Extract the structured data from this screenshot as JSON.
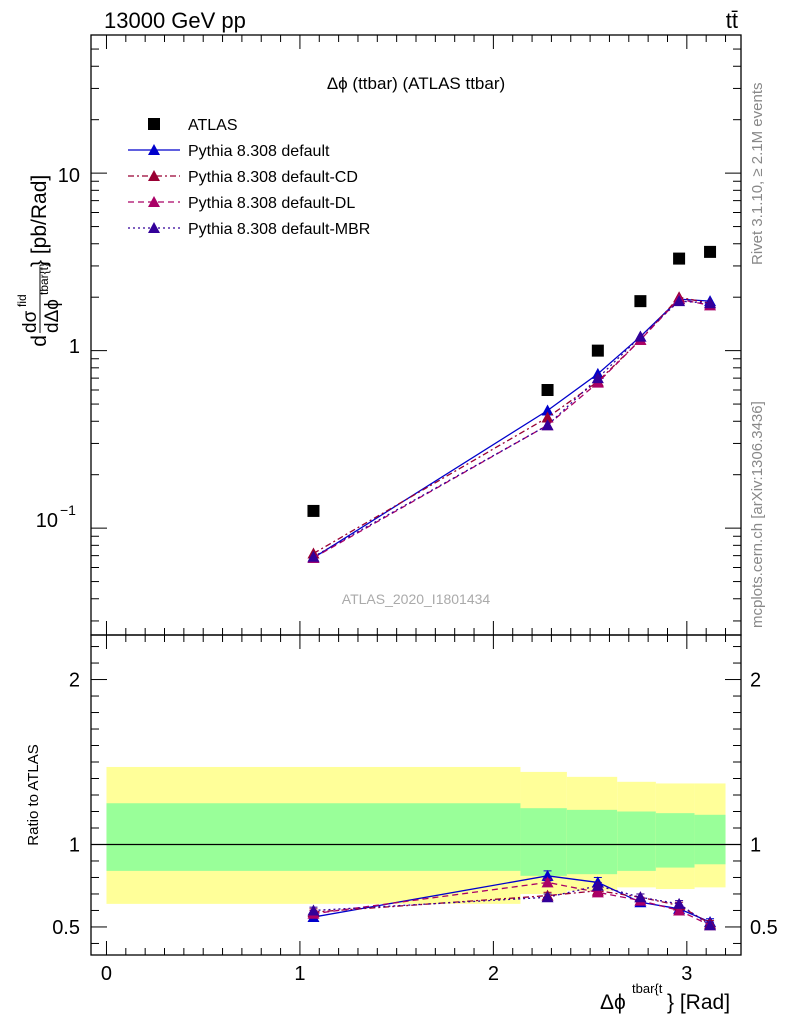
{
  "header": {
    "left": "13000 GeV pp",
    "right": "tt̄"
  },
  "side_labels": {
    "rivet": "Rivet 3.1.10, ≥ 2.1M events",
    "mcplots": "mcplots.cern.ch [arXiv:1306.3436]"
  },
  "watermark": "ATLAS_2020_I1801434",
  "chart_data": [
    {
      "type": "scatter",
      "title": "Δϕ (ttbar) (ATLAS ttbar)",
      "ylabel": "dσ^{fid}/dΔϕ^{tbar{t}} [pb/Rad]",
      "ylabel_parts": {
        "d1": "d",
        "sigma": "dσ",
        "sup": "fid",
        "d2": "dΔϕ",
        "sub": "tbar{t}",
        "unit": "} [pb/Rad]"
      },
      "yscale": "log",
      "ylim": [
        0.025,
        60
      ],
      "xlim": [
        -0.08,
        3.28
      ],
      "y_tick_labels": {
        "ten": "10",
        "one": "1",
        "tenth_base": "10",
        "tenth_exp": "−1"
      },
      "legend_position": "top-left",
      "series": [
        {
          "name": "ATLAS",
          "style": "marker",
          "color": "#000000",
          "x": [
            1.07,
            2.28,
            2.54,
            2.76,
            2.96,
            3.12
          ],
          "y": [
            0.125,
            0.6,
            1.0,
            1.9,
            3.3,
            3.6
          ]
        },
        {
          "name": "Pythia 8.308 default",
          "style": "solid",
          "color": "#0000cc",
          "x": [
            1.07,
            2.28,
            2.54,
            2.76,
            2.96,
            3.12
          ],
          "y": [
            0.068,
            0.46,
            0.74,
            1.2,
            1.95,
            1.9
          ]
        },
        {
          "name": "Pythia 8.308 default-CD",
          "style": "dashdot",
          "color": "#990033",
          "x": [
            1.07,
            2.28,
            2.54,
            2.76,
            2.96,
            3.12
          ],
          "y": [
            0.072,
            0.42,
            0.67,
            1.15,
            2.0,
            1.85
          ]
        },
        {
          "name": "Pythia 8.308 default-DL",
          "style": "dashed",
          "color": "#aa0066",
          "x": [
            1.07,
            2.28,
            2.54,
            2.76,
            2.96,
            3.12
          ],
          "y": [
            0.068,
            0.38,
            0.66,
            1.15,
            1.95,
            1.8
          ]
        },
        {
          "name": "Pythia 8.308 default-MBR",
          "style": "dotted",
          "color": "#330099",
          "x": [
            1.07,
            2.28,
            2.54,
            2.76,
            2.96,
            3.12
          ],
          "y": [
            0.069,
            0.38,
            0.7,
            1.2,
            1.9,
            1.85
          ]
        }
      ]
    },
    {
      "type": "line",
      "ylabel": "Ratio to ATLAS",
      "xlabel": "Δϕ^{tbar{t}} [Rad]",
      "xlabel_parts": {
        "base": "Δϕ",
        "sup": "tbar{t",
        "rest": "} [Rad]"
      },
      "xlim": [
        -0.08,
        3.28
      ],
      "ylim": [
        0.33,
        2.27
      ],
      "x_ticks": [
        0,
        1,
        2,
        3
      ],
      "y_ticks": [
        0.5,
        1,
        2
      ],
      "bands": {
        "edges": [
          0,
          2.14,
          2.38,
          2.64,
          2.84,
          3.04,
          3.2
        ],
        "green": [
          [
            0.84,
            1.25
          ],
          [
            0.81,
            1.22
          ],
          [
            0.82,
            1.21
          ],
          [
            0.84,
            1.2
          ],
          [
            0.86,
            1.19
          ],
          [
            0.88,
            1.18
          ]
        ],
        "yellow": [
          [
            0.64,
            1.47
          ],
          [
            0.7,
            1.44
          ],
          [
            0.72,
            1.41
          ],
          [
            0.74,
            1.38
          ],
          [
            0.73,
            1.37
          ],
          [
            0.74,
            1.37
          ]
        ],
        "green_color": "#99ff99",
        "yellow_color": "#ffff99"
      },
      "series": [
        {
          "name": "Pythia 8.308 default",
          "color": "#0000cc",
          "style": "solid",
          "x": [
            1.07,
            2.28,
            2.54,
            2.76,
            2.96,
            3.12
          ],
          "y": [
            0.56,
            0.81,
            0.77,
            0.65,
            0.61,
            0.53
          ],
          "err": [
            0.02,
            0.03,
            0.03,
            0.02,
            0.02,
            0.02
          ]
        },
        {
          "name": "Pythia 8.308 default-CD",
          "color": "#990033",
          "style": "dashdot",
          "x": [
            1.07,
            2.28,
            2.54,
            2.76,
            2.96,
            3.12
          ],
          "y": [
            0.59,
            0.69,
            0.72,
            0.68,
            0.63,
            0.52
          ],
          "err": [
            0.02,
            0.02,
            0.02,
            0.02,
            0.02,
            0.02
          ]
        },
        {
          "name": "Pythia 8.308 default-DL",
          "color": "#aa0066",
          "style": "dashed",
          "x": [
            1.07,
            2.28,
            2.54,
            2.76,
            2.96,
            3.12
          ],
          "y": [
            0.58,
            0.77,
            0.71,
            0.66,
            0.6,
            0.51
          ],
          "err": [
            0.02,
            0.02,
            0.02,
            0.02,
            0.02,
            0.02
          ]
        },
        {
          "name": "Pythia 8.308 default-MBR",
          "color": "#330099",
          "style": "dotted",
          "x": [
            1.07,
            2.28,
            2.54,
            2.76,
            2.96,
            3.12
          ],
          "y": [
            0.6,
            0.68,
            0.75,
            0.68,
            0.64,
            0.51
          ],
          "err": [
            0.02,
            0.02,
            0.02,
            0.02,
            0.02,
            0.02
          ]
        }
      ]
    }
  ]
}
